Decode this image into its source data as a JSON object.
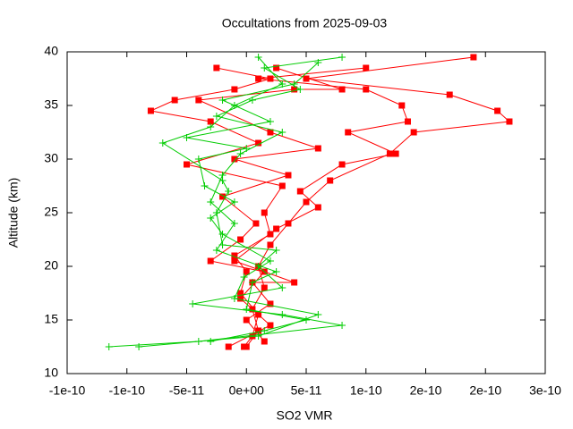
{
  "chart_data": {
    "type": "line",
    "title": "Occultations from 2025-09-03",
    "x_label": "SO2 VMR",
    "y_label": "Altitude (km)",
    "xlim": [
      -1.5e-10,
      2.5e-10
    ],
    "xticks": [
      {
        "value": -1.5e-10,
        "label": "-1e-10"
      },
      {
        "value": -1e-10,
        "label": "-1e-10"
      },
      {
        "value": -5e-11,
        "label": "-5e-11"
      },
      {
        "value": 0,
        "label": "0e+00"
      },
      {
        "value": 5e-11,
        "label": "5e-11"
      },
      {
        "value": 1e-10,
        "label": "1e-10"
      },
      {
        "value": 1.5e-10,
        "label": "2e-10"
      },
      {
        "value": 2e-10,
        "label": "2e-10"
      },
      {
        "value": 2.5e-10,
        "label": "3e-10"
      }
    ],
    "ylim": [
      10,
      40
    ],
    "yticks": [
      10,
      15,
      20,
      25,
      30,
      35,
      40
    ],
    "series": [
      {
        "color": "#ff0000",
        "marker": "square",
        "x": [
          0,
          1e-11,
          5e-12,
          1.5e-11,
          1e-11,
          2e-11,
          3.5e-11,
          5e-11,
          7e-11,
          1.2e-10,
          1.4e-10,
          2.2e-10,
          2.1e-10,
          1.7e-10,
          5e-11,
          1.9e-10
        ],
        "values": [
          12.5,
          14,
          16,
          18,
          20,
          22,
          24,
          26,
          28,
          30.5,
          32.5,
          33.5,
          34.5,
          36,
          37.5,
          39.5
        ]
      },
      {
        "color": "#ff0000",
        "marker": "square",
        "x": [
          -2e-12,
          5e-12,
          1e-11,
          -5e-12,
          0,
          -1e-11,
          2e-11,
          1.5e-11,
          3e-11,
          -5e-11,
          1e-11,
          -3e-11,
          -8e-11,
          -6e-11,
          -1e-11,
          2e-11,
          -2.5e-11
        ],
        "values": [
          12.5,
          13.5,
          15.5,
          17.5,
          19.5,
          21,
          23,
          25,
          27.5,
          29.5,
          31.5,
          33.5,
          34.5,
          35.5,
          36.5,
          37.5,
          38.5
        ]
      },
      {
        "color": "#ff0000",
        "marker": "square",
        "x": [
          1.5e-11,
          0,
          2e-11,
          5e-12,
          4e-11,
          -1e-11,
          2.5e-11,
          6e-11,
          4.5e-11,
          8e-11,
          1.25e-10,
          8.5e-11,
          1.35e-10,
          1.3e-10,
          1e-10,
          1e-11,
          1e-10
        ],
        "values": [
          13,
          15,
          16.5,
          18.5,
          18.5,
          20.5,
          23.5,
          25.5,
          27,
          29.5,
          30.5,
          32.5,
          33.5,
          35,
          36.5,
          37.5,
          38.5
        ]
      },
      {
        "color": "#ff0000",
        "marker": "square",
        "x": [
          -1.5e-11,
          2e-11,
          -5e-12,
          1.5e-11,
          -3e-11,
          -5e-12,
          8e-12,
          -2e-11,
          3.5e-11,
          -1e-11,
          6e-11,
          2e-11,
          -4e-11,
          4e-11,
          8e-11,
          2.5e-11
        ],
        "values": [
          12.5,
          14.5,
          17,
          19.5,
          20.5,
          22.5,
          24,
          26.5,
          28.5,
          30,
          31,
          32.5,
          35.5,
          36.5,
          36.5,
          38.5
        ]
      },
      {
        "color": "#00cc00",
        "marker": "plus",
        "x": [
          -1.15e-10,
          -4e-11,
          8e-11,
          3e-11,
          -4.5e-11,
          3e-11,
          1e-11,
          2.5e-11,
          -2e-11,
          -2.5e-11,
          -1.5e-11,
          -2e-11,
          -7e-11,
          -3e-11,
          -1e-11,
          3e-11,
          1e-11
        ],
        "values": [
          12.5,
          13,
          14.5,
          15.5,
          16.5,
          18,
          20,
          21.5,
          22,
          25,
          27,
          28,
          31.5,
          33,
          35,
          37,
          39.5
        ]
      },
      {
        "color": "#00cc00",
        "marker": "plus",
        "x": [
          -9e-11,
          1e-11,
          6e-11,
          -1e-11,
          -2e-12,
          2e-11,
          -2e-11,
          -3e-11,
          -1e-11,
          -3.5e-11,
          -4e-11,
          0,
          -5e-11,
          2e-11,
          -2e-11,
          4e-11,
          6e-11
        ],
        "values": [
          12.5,
          13.5,
          15.5,
          17,
          19,
          20.5,
          23,
          24.5,
          26,
          27.5,
          30,
          31,
          32,
          33.5,
          35.5,
          37,
          39
        ]
      },
      {
        "color": "#00cc00",
        "marker": "plus",
        "x": [
          -3e-11,
          1.5e-11,
          5e-11,
          0,
          5e-12,
          2.5e-11,
          -2.5e-11,
          -1e-11,
          -3e-11,
          -2e-11,
          -5e-12,
          3e-11,
          -2.5e-11,
          5e-12,
          4.5e-11,
          1.5e-11,
          8e-11
        ],
        "values": [
          13,
          14,
          15,
          16,
          18.5,
          19.5,
          21.5,
          24,
          26,
          28.5,
          30.5,
          32.5,
          34,
          35.5,
          36.5,
          38.5,
          39.5
        ]
      }
    ]
  }
}
